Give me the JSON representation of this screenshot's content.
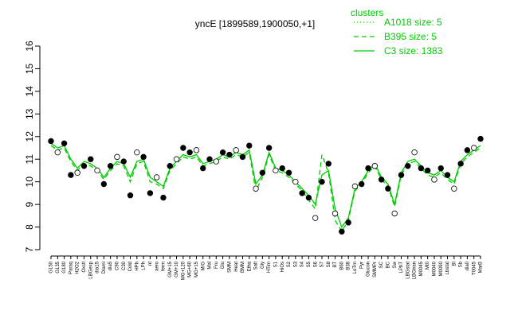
{
  "chart_data": {
    "type": "line",
    "title": "yncE [1899589,1900050,+1]",
    "legend_title": "clusters",
    "legend_position": "top-right",
    "categories": [
      "G150",
      "G135",
      "G180",
      "Paraq",
      "H2O2",
      "Oxctl",
      "LBGexp",
      "dia15",
      "Diami",
      "dia5",
      "C90",
      "C30",
      "Cold",
      "HPh",
      "LPh",
      "nt",
      "aero",
      "ferm",
      "GM+15",
      "GM+10",
      "MG+120",
      "MG+60",
      "MG+15",
      "M/G",
      "Mal",
      "Fru",
      "Glu",
      "SMM",
      "Heat",
      "BMM",
      "Etha",
      "Salt",
      "Gly",
      "HTim",
      "S1",
      "HiOs",
      "S2",
      "S3",
      "S4",
      "S5",
      "S6",
      "S7",
      "S8",
      "BT",
      "B60",
      "B38",
      "LoTm",
      "Pyr",
      "Glucon",
      "SMMPr",
      "SC",
      "BC",
      "Sw",
      "LPhT",
      "LBGstat",
      "LBGtran",
      "M0045",
      "Mt0",
      "M0040",
      "M0090",
      "Lbstat",
      "BI",
      "Sb",
      "dia0",
      "T0045",
      "MarB"
    ],
    "series": [
      {
        "name": "A1018 size: 5",
        "color": "#00cc00",
        "dash": "dotted",
        "values": [
          11.7,
          11.5,
          11.6,
          11.0,
          10.6,
          10.9,
          10.8,
          10.6,
          10.2,
          10.6,
          10.9,
          10.8,
          10.2,
          10.9,
          11.0,
          10.2,
          10.0,
          9.8,
          10.6,
          10.9,
          11.2,
          11.1,
          11.2,
          10.8,
          10.9,
          11.0,
          11.2,
          11.1,
          11.3,
          11.2,
          11.4,
          9.9,
          10.3,
          11.3,
          10.6,
          10.5,
          10.3,
          10.0,
          9.7,
          9.4,
          9.0,
          10.3,
          10.5,
          8.8,
          8.0,
          8.4,
          9.7,
          10.0,
          10.5,
          10.8,
          10.2,
          9.9,
          9.0,
          10.4,
          10.9,
          11.0,
          10.7,
          10.4,
          10.3,
          10.5,
          10.2,
          10.0,
          10.9,
          11.2,
          11.4,
          11.6
        ]
      },
      {
        "name": "B395 size: 5",
        "color": "#00cc00",
        "dash": "dashed",
        "values": [
          11.6,
          11.4,
          11.5,
          10.9,
          10.5,
          10.8,
          10.7,
          10.5,
          10.1,
          10.5,
          10.8,
          10.7,
          10.0,
          10.8,
          10.9,
          10.0,
          9.9,
          9.7,
          10.5,
          10.8,
          11.1,
          11.0,
          11.1,
          10.7,
          10.8,
          10.9,
          11.1,
          11.0,
          11.2,
          11.1,
          11.3,
          9.6,
          10.2,
          11.2,
          10.5,
          10.4,
          10.2,
          9.9,
          9.6,
          9.2,
          8.8,
          11.2,
          10.4,
          8.3,
          7.8,
          8.3,
          9.6,
          9.9,
          10.4,
          10.7,
          10.1,
          9.8,
          8.9,
          10.3,
          10.8,
          10.9,
          10.6,
          10.3,
          10.2,
          10.4,
          10.1,
          9.9,
          10.8,
          11.1,
          11.3,
          11.5
        ]
      },
      {
        "name": "C3 size: 1383",
        "color": "#00cc00",
        "dash": "solid",
        "values": [
          11.7,
          11.5,
          11.6,
          11.0,
          10.6,
          10.9,
          10.8,
          10.6,
          10.2,
          10.6,
          10.9,
          10.8,
          10.2,
          10.9,
          11.0,
          10.2,
          10.0,
          9.8,
          10.6,
          10.9,
          11.2,
          11.1,
          11.2,
          10.8,
          10.9,
          11.0,
          11.2,
          11.1,
          11.3,
          11.2,
          11.4,
          9.9,
          10.3,
          11.3,
          10.6,
          10.5,
          10.3,
          10.0,
          9.7,
          9.4,
          9.0,
          10.3,
          10.5,
          8.8,
          8.0,
          8.4,
          9.7,
          10.0,
          10.5,
          10.8,
          10.2,
          9.9,
          9.0,
          10.4,
          10.9,
          11.0,
          10.7,
          10.4,
          10.3,
          10.5,
          10.2,
          10.0,
          10.9,
          11.2,
          11.4,
          11.6
        ]
      }
    ],
    "points": [
      11.8,
      11.3,
      11.7,
      10.3,
      10.4,
      10.7,
      11.0,
      10.5,
      9.9,
      10.7,
      11.1,
      10.9,
      9.4,
      11.3,
      11.1,
      9.5,
      10.2,
      9.3,
      10.7,
      11.0,
      11.5,
      11.3,
      11.4,
      10.6,
      11.0,
      10.9,
      11.3,
      11.2,
      11.4,
      11.1,
      11.6,
      9.7,
      10.4,
      11.5,
      10.5,
      10.6,
      10.4,
      10.0,
      9.5,
      9.3,
      8.4,
      10.0,
      10.8,
      8.6,
      7.8,
      8.2,
      9.8,
      9.9,
      10.6,
      10.7,
      10.1,
      9.7,
      8.6,
      10.3,
      10.7,
      11.3,
      10.6,
      10.5,
      10.1,
      10.6,
      10.3,
      9.7,
      10.8,
      11.4,
      11.5,
      11.9
    ],
    "ylim": [
      7,
      16
    ],
    "yticks": [
      7,
      8,
      9,
      10,
      11,
      12,
      13,
      14,
      15,
      16
    ]
  }
}
